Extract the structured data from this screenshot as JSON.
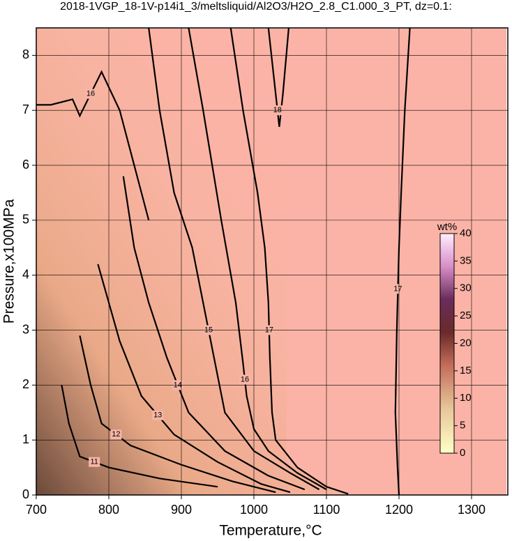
{
  "chart_data": {
    "type": "contour",
    "title": "2018-1VGP_18-1V-p14i1_3/meltsliquid/Al2O3/H2O_2.8_C1.000_3_PT, dz=0.1:",
    "x_label": "Temperature,°C",
    "y_label": "Pressure,x100MPa",
    "xlim": [
      700,
      1350
    ],
    "ylim": [
      0,
      8.5
    ],
    "xticks": [
      700,
      800,
      900,
      1000,
      1100,
      1200,
      1300
    ],
    "yticks": [
      0,
      1,
      2,
      3,
      4,
      5,
      6,
      7,
      8
    ],
    "grid": true,
    "colorbar": {
      "label": "wt%",
      "lim": [
        0,
        40
      ],
      "ticks": [
        0,
        5,
        10,
        15,
        20,
        25,
        30,
        35,
        40
      ]
    },
    "contours": [
      {
        "level": 17,
        "x": [
          1200,
          1198,
          1195,
          1197,
          1200,
          1203,
          1208,
          1215
        ],
        "y": [
          0,
          0.5,
          1.5,
          3,
          4.5,
          5.5,
          7,
          8.5
        ]
      },
      {
        "level": 18,
        "x": [
          1020,
          1030,
          1035,
          1040,
          1048
        ],
        "y": [
          8.5,
          7.3,
          6.7,
          7.3,
          8.5
        ]
      },
      {
        "level": 17,
        "x": [
          968,
          985,
          1005,
          1015,
          1020,
          1022,
          1025,
          1030,
          1060,
          1100,
          1130
        ],
        "y": [
          8.5,
          7,
          5.5,
          4.5,
          3.5,
          2.5,
          1.5,
          1.0,
          0.5,
          0.15,
          0.02
        ]
      },
      {
        "level": 16,
        "x": [
          910,
          930,
          955,
          975,
          985,
          990,
          1000,
          1020,
          1060,
          1100
        ],
        "y": [
          8.5,
          7,
          5,
          3.5,
          2.4,
          1.8,
          1.2,
          0.8,
          0.4,
          0.1
        ]
      },
      {
        "level": 15,
        "x": [
          855,
          870,
          890,
          915,
          930,
          945,
          960,
          1000,
          1050,
          1090
        ],
        "y": [
          8.5,
          7,
          5.5,
          4.5,
          3.5,
          2.5,
          1.5,
          0.8,
          0.4,
          0.1
        ]
      },
      {
        "level": 14,
        "x": [
          820,
          835,
          855,
          880,
          910,
          960,
          1020,
          1070
        ],
        "y": [
          5.8,
          4.5,
          3.5,
          2.5,
          1.5,
          0.8,
          0.35,
          0.1
        ]
      },
      {
        "level": 13,
        "x": [
          785,
          800,
          815,
          845,
          890,
          950,
          1010,
          1050
        ],
        "y": [
          4.2,
          3.5,
          2.8,
          1.8,
          1.1,
          0.6,
          0.2,
          0.05
        ]
      },
      {
        "level": 12,
        "x": [
          760,
          775,
          790,
          830,
          900,
          970,
          1030
        ],
        "y": [
          2.9,
          2,
          1.3,
          0.9,
          0.55,
          0.25,
          0.05
        ]
      },
      {
        "level": 11,
        "x": [
          735,
          745,
          760,
          800,
          870,
          950
        ],
        "y": [
          2,
          1.3,
          0.7,
          0.5,
          0.3,
          0.15
        ]
      },
      {
        "level": 16,
        "x": [
          700,
          720,
          750,
          760,
          790,
          815,
          835,
          855
        ],
        "y": [
          7.1,
          7.1,
          7.2,
          6.9,
          7.7,
          7,
          6,
          5
        ]
      }
    ]
  }
}
